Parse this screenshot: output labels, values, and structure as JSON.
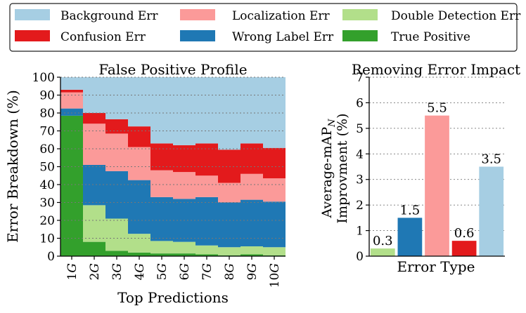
{
  "colors": {
    "background": "#a6cee3",
    "localization": "#fb9a99",
    "double": "#b2df8a",
    "confusion": "#e31a1c",
    "wrong_label": "#1f78b4",
    "true_positive": "#33a02c"
  },
  "legend": [
    {
      "label": "Background Err",
      "color": "#a6cee3"
    },
    {
      "label": "Localization Err",
      "color": "#fb9a99"
    },
    {
      "label": "Double Detection Err",
      "color": "#b2df8a"
    },
    {
      "label": "Confusion Err",
      "color": "#e31a1c"
    },
    {
      "label": "Wrong Label Err",
      "color": "#1f78b4"
    },
    {
      "label": "True Positive",
      "color": "#33a02c"
    }
  ],
  "chart_data": [
    {
      "type": "area",
      "title": "False Positive Profile",
      "xlabel": "Top Predictions",
      "ylabel": "Error Breakdown (%)",
      "ylim": [
        0,
        100
      ],
      "yticks": [
        "0",
        "10",
        "20",
        "30",
        "40",
        "50",
        "60",
        "70",
        "80",
        "90",
        "100"
      ],
      "categories": [
        "1G",
        "2G",
        "3G",
        "4G",
        "5G",
        "6G",
        "7G",
        "8G",
        "9G",
        "10G"
      ],
      "grid": true,
      "stack_order": [
        "True Positive",
        "Double Detection Err",
        "Wrong Label Err",
        "Localization Err",
        "Confusion Err",
        "Background Err"
      ],
      "series": [
        {
          "name": "True Positive",
          "color": "#33a02c",
          "values": [
            78.5,
            8,
            3,
            2,
            1.5,
            1.5,
            1,
            0.5,
            1,
            0.5
          ]
        },
        {
          "name": "Double Detection Err",
          "color": "#b2df8a",
          "values": [
            0,
            20.5,
            18,
            10.5,
            7,
            6.5,
            5,
            4.5,
            4.5,
            4.5
          ]
        },
        {
          "name": "Wrong Label Err",
          "color": "#1f78b4",
          "values": [
            4,
            22.5,
            26.5,
            30,
            24.5,
            24,
            27,
            25,
            26,
            25.5
          ]
        },
        {
          "name": "Localization Err",
          "color": "#fb9a99",
          "values": [
            9,
            23,
            21,
            18.5,
            15,
            15,
            12,
            11,
            14.5,
            13
          ]
        },
        {
          "name": "Confusion Err",
          "color": "#e31a1c",
          "values": [
            1.5,
            6,
            8,
            11.5,
            15,
            15,
            18,
            18.5,
            17,
            17
          ]
        },
        {
          "name": "Background Err",
          "color": "#a6cee3",
          "values": [
            7,
            20,
            23.5,
            27.5,
            37,
            38,
            37,
            40.5,
            37,
            39.5
          ]
        }
      ]
    },
    {
      "type": "bar",
      "title": "Removing Error Impact",
      "xlabel": "Error Type",
      "ylabel_line1": "Average-mAP",
      "ylabel_sub": "N",
      "ylabel_line2": "Improvment (%)",
      "ylim": [
        0,
        7
      ],
      "yticks": [
        "0",
        "1",
        "2",
        "3",
        "4",
        "5",
        "6",
        "7"
      ],
      "grid": true,
      "bars": [
        {
          "name": "Double Detection Err",
          "value": 0.3,
          "label": "0.3",
          "color": "#b2df8a"
        },
        {
          "name": "Wrong Label Err",
          "value": 1.5,
          "label": "1.5",
          "color": "#1f78b4"
        },
        {
          "name": "Localization Err",
          "value": 5.5,
          "label": "5.5",
          "color": "#fb9a99"
        },
        {
          "name": "Confusion Err",
          "value": 0.6,
          "label": "0.6",
          "color": "#e31a1c"
        },
        {
          "name": "Background Err",
          "value": 3.5,
          "label": "3.5",
          "color": "#a6cee3"
        }
      ]
    }
  ]
}
